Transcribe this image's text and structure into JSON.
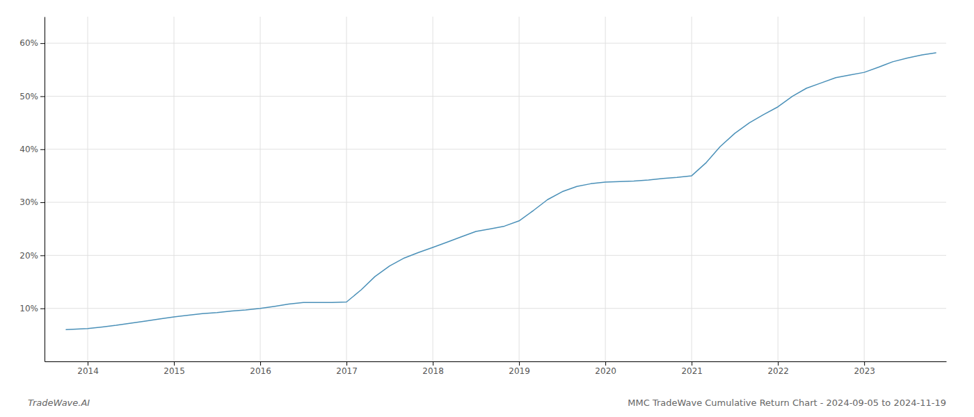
{
  "chart_data": {
    "type": "line",
    "title": "MMC TradeWave Cumulative Return Chart - 2024-09-05 to 2024-11-19",
    "annotations": [
      "TradeWave.AI"
    ],
    "color": "#4a90b8",
    "grid": true,
    "x": [
      2013.75,
      2014.0,
      2014.17,
      2014.33,
      2014.5,
      2014.67,
      2014.83,
      2015.0,
      2015.17,
      2015.33,
      2015.5,
      2015.67,
      2015.83,
      2016.0,
      2016.17,
      2016.33,
      2016.5,
      2016.67,
      2016.83,
      2017.0,
      2017.17,
      2017.33,
      2017.5,
      2017.67,
      2017.83,
      2018.0,
      2018.17,
      2018.33,
      2018.5,
      2018.67,
      2018.83,
      2019.0,
      2019.17,
      2019.33,
      2019.5,
      2019.67,
      2019.83,
      2020.0,
      2020.17,
      2020.33,
      2020.5,
      2020.67,
      2020.83,
      2021.0,
      2021.17,
      2021.33,
      2021.5,
      2021.67,
      2021.83,
      2022.0,
      2022.17,
      2022.33,
      2022.5,
      2022.67,
      2022.83,
      2023.0,
      2023.17,
      2023.33,
      2023.5,
      2023.67,
      2023.83
    ],
    "values": [
      6.0,
      6.2,
      6.5,
      6.8,
      7.2,
      7.6,
      8.0,
      8.4,
      8.7,
      9.0,
      9.2,
      9.5,
      9.7,
      10.0,
      10.4,
      10.8,
      11.1,
      11.1,
      11.1,
      11.2,
      13.5,
      16.0,
      18.0,
      19.5,
      20.5,
      21.5,
      22.5,
      23.5,
      24.5,
      25.0,
      25.5,
      26.5,
      28.5,
      30.5,
      32.0,
      33.0,
      33.5,
      33.8,
      33.9,
      34.0,
      34.2,
      34.5,
      34.7,
      35.0,
      37.5,
      40.5,
      43.0,
      45.0,
      46.5,
      48.0,
      50.0,
      51.5,
      52.5,
      53.5,
      54.0,
      54.5,
      55.5,
      56.5,
      57.2,
      57.8,
      58.2
    ],
    "xlim": [
      2013.5,
      2023.95
    ],
    "xticks": [
      2014,
      2015,
      2016,
      2017,
      2018,
      2019,
      2020,
      2021,
      2022,
      2023
    ],
    "ylim": [
      0,
      65
    ],
    "yticks": [
      {
        "value": 10,
        "label": "10%"
      },
      {
        "value": 20,
        "label": "20%"
      },
      {
        "value": 30,
        "label": "30%"
      },
      {
        "value": 40,
        "label": "40%"
      },
      {
        "value": 50,
        "label": "50%"
      },
      {
        "value": 60,
        "label": "60%"
      }
    ]
  }
}
